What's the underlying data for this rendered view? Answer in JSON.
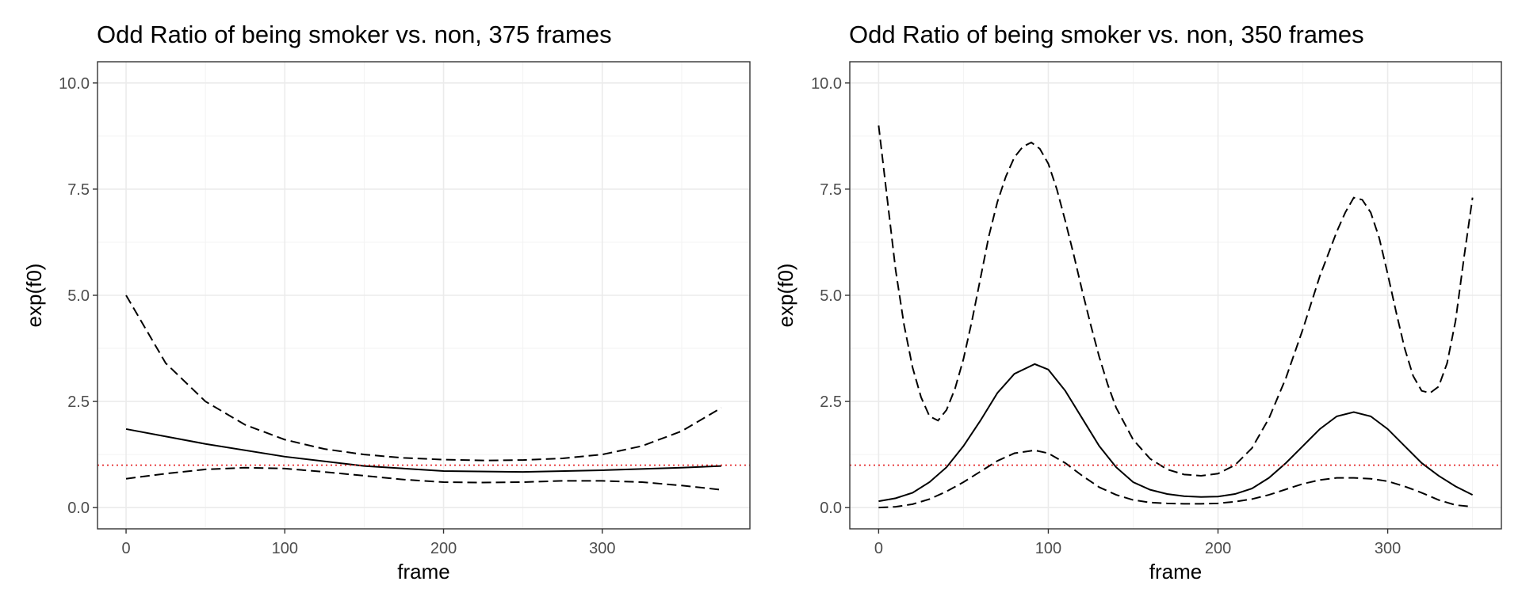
{
  "colors": {
    "series": "#000000",
    "reference": "#e31a1c",
    "panel_border": "#333333",
    "grid": "#ebebeb",
    "tick_text": "#4d4d4d"
  },
  "chart_data": [
    {
      "type": "line",
      "title": "Odd Ratio of being smoker vs. non, 375 frames",
      "xlabel": "frame",
      "ylabel": "exp(f0)",
      "xlim": [
        -18,
        393
      ],
      "ylim": [
        -0.5,
        10.5
      ],
      "x_ticks": [
        0,
        100,
        200,
        300
      ],
      "y_ticks": [
        0,
        2.5,
        5,
        7.5,
        10
      ],
      "x_tick_labels": [
        "0",
        "100",
        "200",
        "300"
      ],
      "y_tick_labels": [
        "0.0",
        "2.5",
        "5.0",
        "7.5",
        "10.0"
      ],
      "grid": true,
      "reference_line": {
        "y": 1.0,
        "style": "dotted",
        "color": "red"
      },
      "series": [
        {
          "role": "estimate",
          "style": "solid",
          "x": [
            0,
            50,
            100,
            150,
            200,
            250,
            300,
            350,
            375
          ],
          "y": [
            1.85,
            1.5,
            1.2,
            0.98,
            0.86,
            0.84,
            0.88,
            0.94,
            0.98
          ]
        },
        {
          "role": "upper",
          "style": "dashed",
          "x": [
            0,
            25,
            50,
            75,
            100,
            125,
            150,
            175,
            200,
            225,
            250,
            275,
            300,
            325,
            350,
            375
          ],
          "y": [
            5.0,
            3.4,
            2.5,
            1.95,
            1.6,
            1.38,
            1.25,
            1.17,
            1.13,
            1.11,
            1.12,
            1.16,
            1.25,
            1.45,
            1.8,
            2.35
          ]
        },
        {
          "role": "lower",
          "style": "dashed",
          "x": [
            0,
            25,
            50,
            75,
            100,
            125,
            150,
            175,
            200,
            225,
            250,
            275,
            300,
            325,
            350,
            375
          ],
          "y": [
            0.68,
            0.8,
            0.9,
            0.94,
            0.92,
            0.84,
            0.75,
            0.66,
            0.6,
            0.59,
            0.6,
            0.63,
            0.63,
            0.6,
            0.52,
            0.42
          ]
        }
      ]
    },
    {
      "type": "line",
      "title": "Odd Ratio of being smoker vs. non, 350 frames",
      "xlabel": "frame",
      "ylabel": "exp(f0)",
      "xlim": [
        -17,
        367
      ],
      "ylim": [
        -0.5,
        10.5
      ],
      "x_ticks": [
        0,
        100,
        200,
        300
      ],
      "y_ticks": [
        0,
        2.5,
        5,
        7.5,
        10
      ],
      "x_tick_labels": [
        "0",
        "100",
        "200",
        "300"
      ],
      "y_tick_labels": [
        "0.0",
        "2.5",
        "5.0",
        "7.5",
        "10.0"
      ],
      "grid": true,
      "reference_line": {
        "y": 1.0,
        "style": "dotted",
        "color": "red"
      },
      "series": [
        {
          "role": "estimate",
          "style": "solid",
          "x": [
            0,
            10,
            20,
            30,
            40,
            50,
            60,
            70,
            80,
            92,
            100,
            110,
            120,
            130,
            140,
            150,
            160,
            170,
            180,
            190,
            200,
            210,
            220,
            230,
            240,
            250,
            260,
            270,
            280,
            290,
            300,
            310,
            320,
            330,
            340,
            350
          ],
          "y": [
            0.15,
            0.22,
            0.35,
            0.6,
            0.95,
            1.45,
            2.05,
            2.7,
            3.15,
            3.38,
            3.25,
            2.75,
            2.1,
            1.45,
            0.95,
            0.6,
            0.42,
            0.32,
            0.27,
            0.25,
            0.26,
            0.32,
            0.45,
            0.7,
            1.05,
            1.45,
            1.85,
            2.15,
            2.25,
            2.15,
            1.85,
            1.45,
            1.05,
            0.75,
            0.5,
            0.3
          ]
        },
        {
          "role": "upper",
          "style": "dashed",
          "x": [
            0,
            5,
            10,
            15,
            20,
            25,
            30,
            35,
            40,
            45,
            50,
            55,
            60,
            65,
            70,
            75,
            80,
            85,
            90,
            95,
            100,
            105,
            110,
            115,
            120,
            125,
            130,
            135,
            140,
            150,
            160,
            170,
            180,
            190,
            200,
            210,
            220,
            230,
            240,
            250,
            260,
            270,
            275,
            280,
            285,
            290,
            295,
            300,
            305,
            310,
            315,
            320,
            325,
            330,
            335,
            340,
            345,
            350
          ],
          "y": [
            9.0,
            7.3,
            5.6,
            4.3,
            3.3,
            2.6,
            2.15,
            2.05,
            2.3,
            2.8,
            3.5,
            4.4,
            5.4,
            6.4,
            7.2,
            7.8,
            8.25,
            8.5,
            8.6,
            8.45,
            8.1,
            7.5,
            6.75,
            5.95,
            5.1,
            4.3,
            3.55,
            2.9,
            2.35,
            1.6,
            1.15,
            0.9,
            0.78,
            0.75,
            0.8,
            1.0,
            1.4,
            2.1,
            3.05,
            4.2,
            5.45,
            6.5,
            6.95,
            7.3,
            7.25,
            6.95,
            6.35,
            5.5,
            4.6,
            3.75,
            3.1,
            2.75,
            2.7,
            2.85,
            3.4,
            4.4,
            5.9,
            7.3
          ]
        },
        {
          "role": "lower",
          "style": "dashed",
          "x": [
            0,
            10,
            20,
            30,
            40,
            50,
            60,
            70,
            80,
            92,
            100,
            110,
            120,
            130,
            140,
            150,
            160,
            170,
            180,
            190,
            200,
            210,
            220,
            230,
            240,
            250,
            260,
            270,
            280,
            290,
            300,
            310,
            320,
            330,
            340,
            350
          ],
          "y": [
            0.0,
            0.02,
            0.08,
            0.2,
            0.38,
            0.6,
            0.85,
            1.1,
            1.28,
            1.35,
            1.28,
            1.05,
            0.75,
            0.48,
            0.3,
            0.18,
            0.12,
            0.1,
            0.09,
            0.09,
            0.1,
            0.14,
            0.2,
            0.3,
            0.43,
            0.56,
            0.65,
            0.7,
            0.7,
            0.68,
            0.62,
            0.5,
            0.35,
            0.18,
            0.06,
            0.02
          ]
        }
      ]
    }
  ]
}
